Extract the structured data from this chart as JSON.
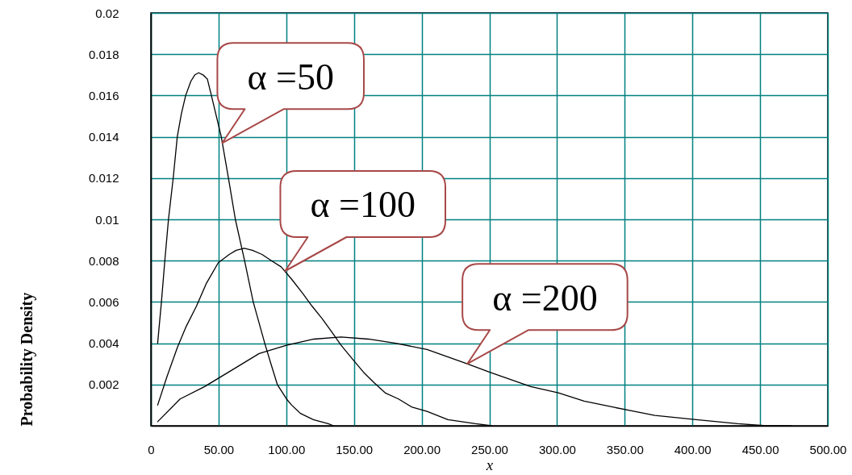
{
  "chart_data": {
    "type": "line",
    "xlabel": "x",
    "ylabel": "Probability Density",
    "xlim": [
      0,
      500
    ],
    "ylim": [
      0,
      0.02
    ],
    "xticks": [
      {
        "value": 0,
        "label": "0"
      },
      {
        "value": 50,
        "label": "50.00"
      },
      {
        "value": 100,
        "label": "100.00"
      },
      {
        "value": 150,
        "label": "150.00"
      },
      {
        "value": 200,
        "label": "200.00"
      },
      {
        "value": 250,
        "label": "250.00"
      },
      {
        "value": 300,
        "label": "300.00"
      },
      {
        "value": 350,
        "label": "350.00"
      },
      {
        "value": 400,
        "label": "400.00"
      },
      {
        "value": 450,
        "label": "450.00"
      },
      {
        "value": 500,
        "label": "500.00"
      }
    ],
    "yticks": [
      0.002,
      0.004,
      0.006,
      0.008,
      0.01,
      0.012,
      0.014,
      0.016,
      0.018,
      0.02
    ],
    "grid": true,
    "series": [
      {
        "color": "#000000",
        "x": [
          5,
          7.8,
          10.3,
          13,
          16.5,
          19.5,
          22.5,
          25.7,
          29.6,
          32.5,
          35.3,
          38.5,
          41.7,
          44.7,
          52,
          57.3,
          62.4,
          69.2,
          75.6,
          84.1,
          88.7,
          93.4,
          100.2,
          104,
          110.5,
          120,
          131,
          135
        ],
        "values": [
          0.004,
          0.006,
          0.008,
          0.01,
          0.012,
          0.014,
          0.0151,
          0.016,
          0.0167,
          0.017,
          0.0171,
          0.017,
          0.0168,
          0.016,
          0.014,
          0.012,
          0.01,
          0.008,
          0.006,
          0.004,
          0.003,
          0.002,
          0.0013,
          0.001,
          0.0006,
          0.0003,
          0.0001,
          0
        ]
      },
      {
        "color": "#000000",
        "x": [
          5,
          12,
          19.6,
          26,
          33.7,
          41,
          49.8,
          57.9,
          63,
          69,
          75,
          82.1,
          89,
          96.2,
          104,
          112.3,
          119,
          126.4,
          133,
          140.5,
          150.6,
          157,
          164.7,
          173,
          182.9,
          193,
          204,
          219.4,
          239.8,
          252
        ],
        "values": [
          0.001,
          0.0024,
          0.0038,
          0.0048,
          0.0058,
          0.0069,
          0.0079,
          0.0083,
          0.0085,
          0.0086,
          0.0085,
          0.0083,
          0.008,
          0.0077,
          0.0071,
          0.0064,
          0.0058,
          0.0052,
          0.0046,
          0.0039,
          0.0031,
          0.0026,
          0.0021,
          0.0016,
          0.0013,
          0.0009,
          0.0007,
          0.0003,
          0.0001,
          0
        ]
      },
      {
        "color": "#000000",
        "x": [
          5,
          21.6,
          39.7,
          59.9,
          80,
          100.2,
          120.4,
          140.5,
          160.7,
          180.8,
          204,
          233.7,
          250,
          280.6,
          301,
          320,
          341.8,
          372.3,
          402.9,
          433.5,
          455,
          473
        ],
        "values": [
          0.0002,
          0.0013,
          0.0019,
          0.0027,
          0.0035,
          0.0039,
          0.0042,
          0.0043,
          0.0042,
          0.004,
          0.0037,
          0.003,
          0.0026,
          0.0019,
          0.0016,
          0.0012,
          0.0009,
          0.0005,
          0.0003,
          0.0001,
          0,
          0
        ]
      }
    ],
    "annotations": [
      {
        "text": "α =50",
        "x": 52.7,
        "y": 0.0137
      },
      {
        "text": "α =100",
        "x": 99.2,
        "y": 0.0075
      },
      {
        "text": "α =200",
        "x": 233.7,
        "y": 0.003
      }
    ]
  }
}
